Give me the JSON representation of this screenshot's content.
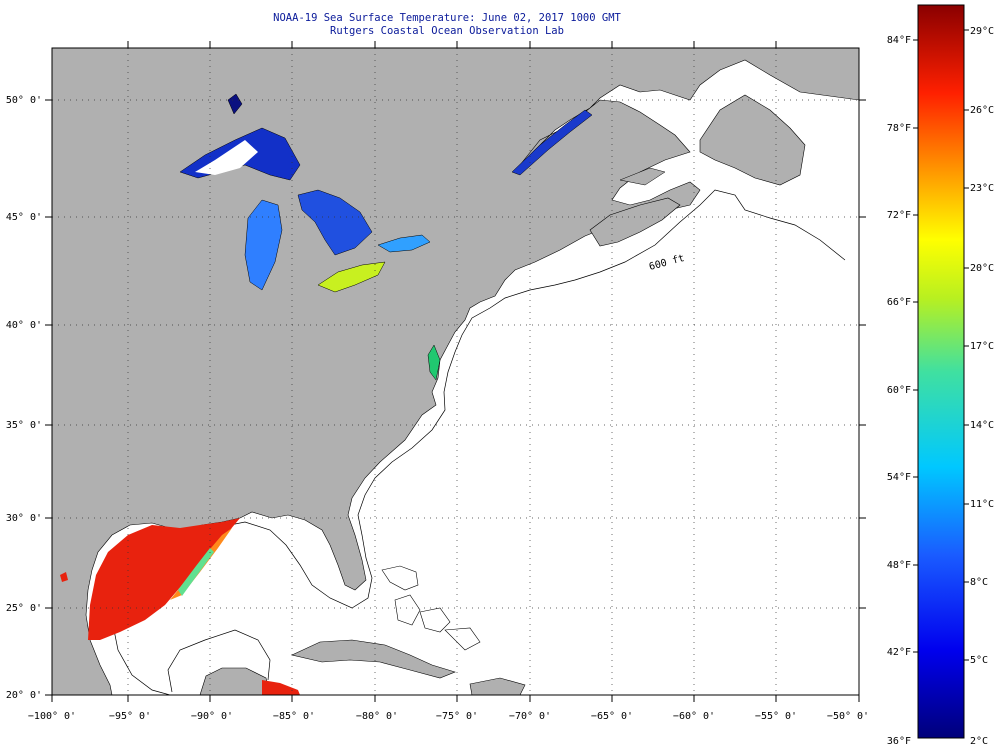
{
  "header": {
    "title_line1": "NOAA-19 Sea Surface Temperature:  June 02, 2017 1000 GMT",
    "title_line2": "Rutgers Coastal Ocean Observation Lab"
  },
  "map": {
    "lon_labels": [
      "−100° 0'",
      "−95° 0'",
      "−90° 0'",
      "−85° 0'",
      "−80° 0'",
      "−75° 0'",
      "−70° 0'",
      "−65° 0'",
      "−60° 0'",
      "−55° 0'",
      "−50° 0'"
    ],
    "lat_labels": [
      "20° 0'",
      "25° 0'",
      "30° 0'",
      "35° 0'",
      "40° 0'",
      "45° 0'",
      "50° 0'"
    ],
    "contour_label": "600 ft",
    "colors": {
      "land": "#b0b0b0",
      "ocean": "#ffffff",
      "frame": "#000000"
    }
  },
  "colorbar": {
    "fahrenheit_labels": [
      "84°F",
      "78°F",
      "72°F",
      "66°F",
      "60°F",
      "54°F",
      "48°F",
      "42°F",
      "36°F"
    ],
    "celsius_labels": [
      "29°C",
      "26°C",
      "23°C",
      "20°C",
      "17°C",
      "14°C",
      "11°C",
      "8°C",
      "5°C",
      "2°C"
    ]
  }
}
